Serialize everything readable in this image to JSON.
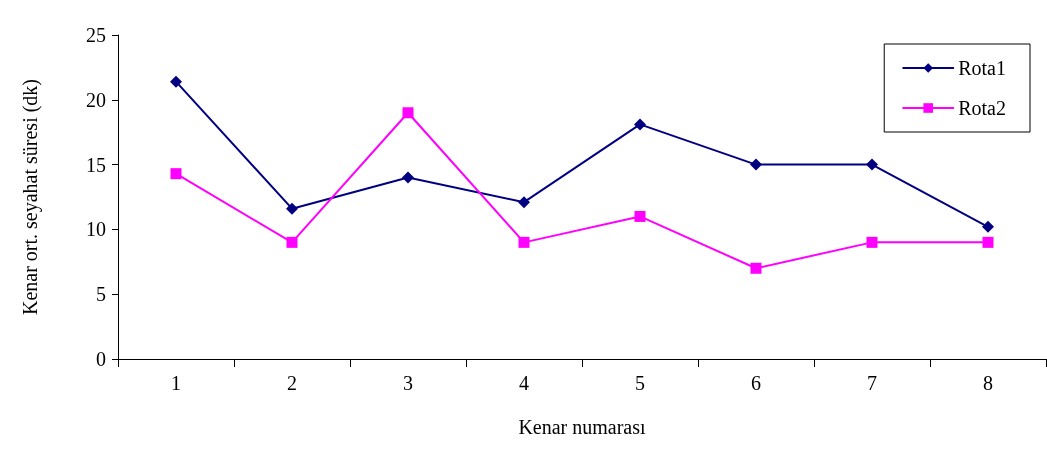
{
  "chart_data": {
    "type": "line",
    "xlabel": "Kenar numarası",
    "ylabel": "Kenar ort. seyahat süresi (dk)",
    "categories": [
      "1",
      "2",
      "3",
      "4",
      "5",
      "6",
      "7",
      "8"
    ],
    "series": [
      {
        "name": "Rota1",
        "color": "#000080",
        "marker": "diamond",
        "values": [
          21.4,
          11.6,
          14,
          12.1,
          18.1,
          15,
          15,
          10.2
        ]
      },
      {
        "name": "Rota2",
        "color": "#ff00ff",
        "marker": "square",
        "values": [
          14.3,
          9,
          19,
          9,
          11,
          7,
          9,
          9
        ]
      }
    ],
    "ylim": [
      0,
      25
    ],
    "yticks": [
      0,
      5,
      10,
      15,
      20,
      25
    ],
    "grid": false,
    "legend": "top right",
    "line_style": "solid"
  }
}
